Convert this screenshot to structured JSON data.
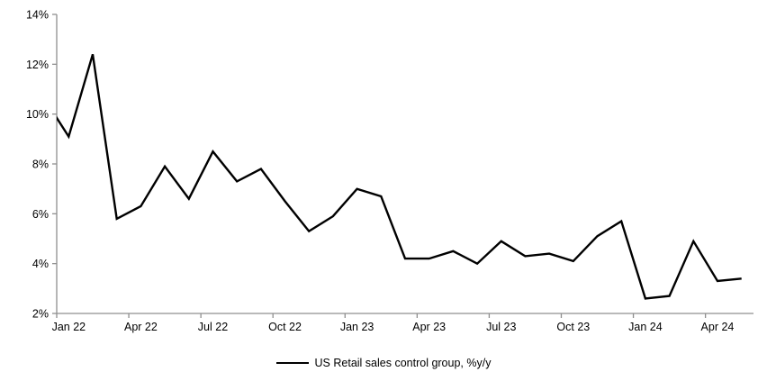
{
  "chart_data": {
    "type": "line",
    "title": "",
    "x": [
      "Dec 21",
      "Jan 22",
      "Feb 22",
      "Mar 22",
      "Apr 22",
      "May 22",
      "Jun 22",
      "Jul 22",
      "Aug 22",
      "Sep 22",
      "Oct 22",
      "Nov 22",
      "Dec 22",
      "Jan 23",
      "Feb 23",
      "Mar 23",
      "Apr 23",
      "May 23",
      "Jun 23",
      "Jul 23",
      "Aug 23",
      "Sep 23",
      "Oct 23",
      "Nov 23",
      "Dec 23",
      "Jan 24",
      "Feb 24",
      "Mar 24",
      "Apr 24",
      "May 24"
    ],
    "series": [
      {
        "name": "US Retail sales control group, %y/y",
        "values": [
          10.6,
          9.1,
          12.4,
          5.8,
          6.3,
          7.9,
          6.6,
          8.5,
          7.3,
          7.8,
          6.5,
          5.3,
          5.9,
          7.0,
          6.7,
          4.2,
          4.2,
          4.5,
          4.0,
          4.9,
          4.3,
          4.4,
          4.1,
          5.1,
          5.7,
          2.6,
          2.7,
          4.9,
          3.3,
          3.4
        ]
      }
    ],
    "first_point_clipped_at_left_axis": true,
    "ylim": [
      2,
      14
    ],
    "ytick_step": 2,
    "yticklabels": [
      "2%",
      "4%",
      "6%",
      "8%",
      "10%",
      "12%",
      "14%"
    ],
    "xticklabels": [
      "Jan 22",
      "Apr 22",
      "Jul 22",
      "Oct 22",
      "Jan 23",
      "Apr 23",
      "Jul 23",
      "Oct 23",
      "Jan 24",
      "Apr 24"
    ],
    "xtick_interval_months": 3,
    "grid": false,
    "legend_position": "bottom-center",
    "colors": {
      "line": "#000000",
      "axis": "#8f8f8f",
      "text": "#000000",
      "background": "#ffffff"
    }
  }
}
